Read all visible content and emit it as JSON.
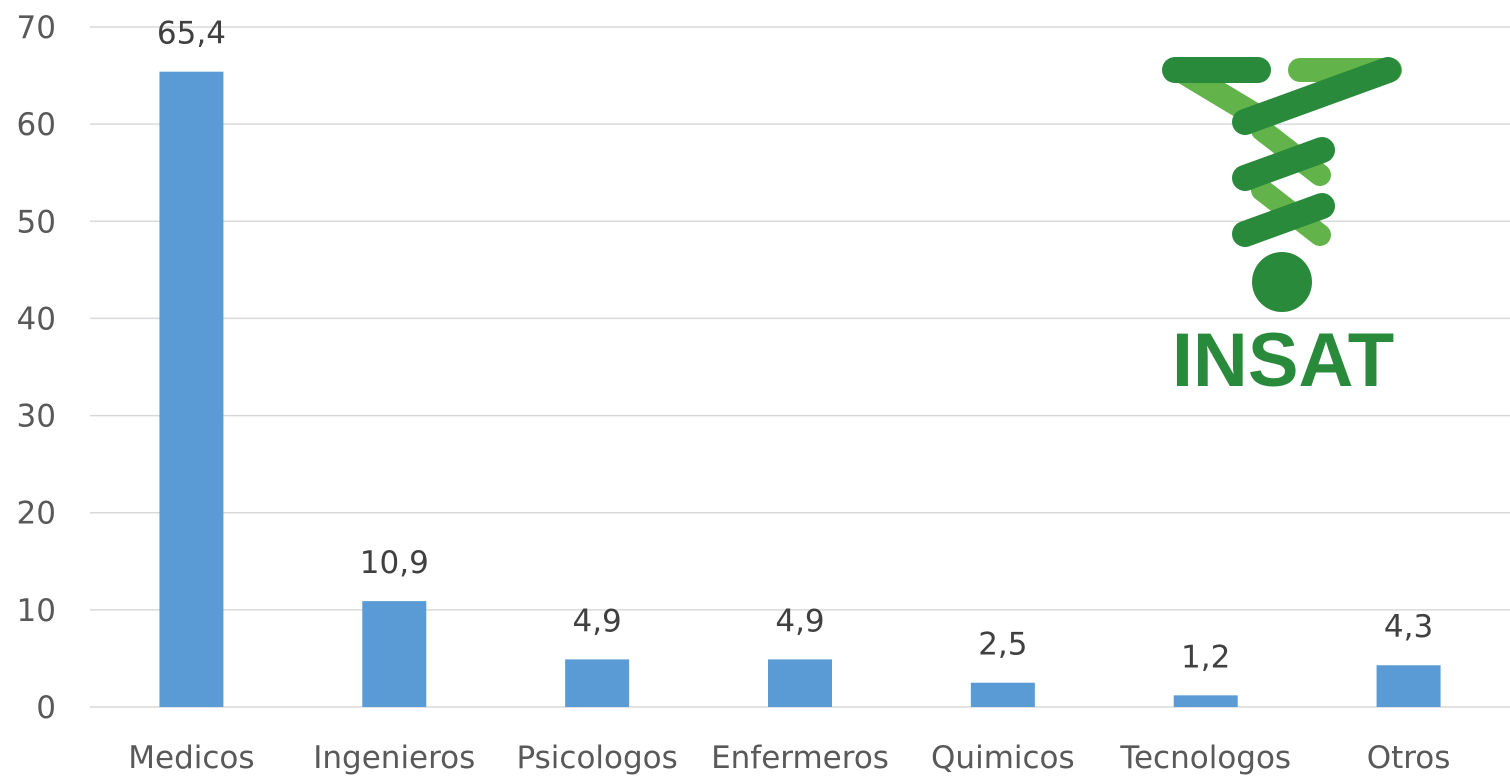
{
  "chart_data": {
    "type": "bar",
    "categories": [
      "Medicos",
      "Ingenieros",
      "Psicologos",
      "Enfermeros",
      "Quimicos",
      "Tecnologos",
      "Otros"
    ],
    "values": [
      65.4,
      10.9,
      4.9,
      4.9,
      2.5,
      1.2,
      4.3
    ],
    "data_labels": [
      "65,4",
      "10,9",
      "4,9",
      "4,9",
      "2,5",
      "1,2",
      "4,3"
    ],
    "ylim": [
      0,
      70
    ],
    "yticks": [
      0,
      10,
      20,
      30,
      40,
      50,
      60,
      70
    ],
    "grid": true,
    "bar_color": "#5b9bd5",
    "grid_color": "#d9d9d9",
    "title": "",
    "xlabel": "",
    "ylabel": ""
  },
  "logo": {
    "text": "INSAT",
    "dark_green": "#2a8a3b",
    "light_green": "#62b44a"
  }
}
